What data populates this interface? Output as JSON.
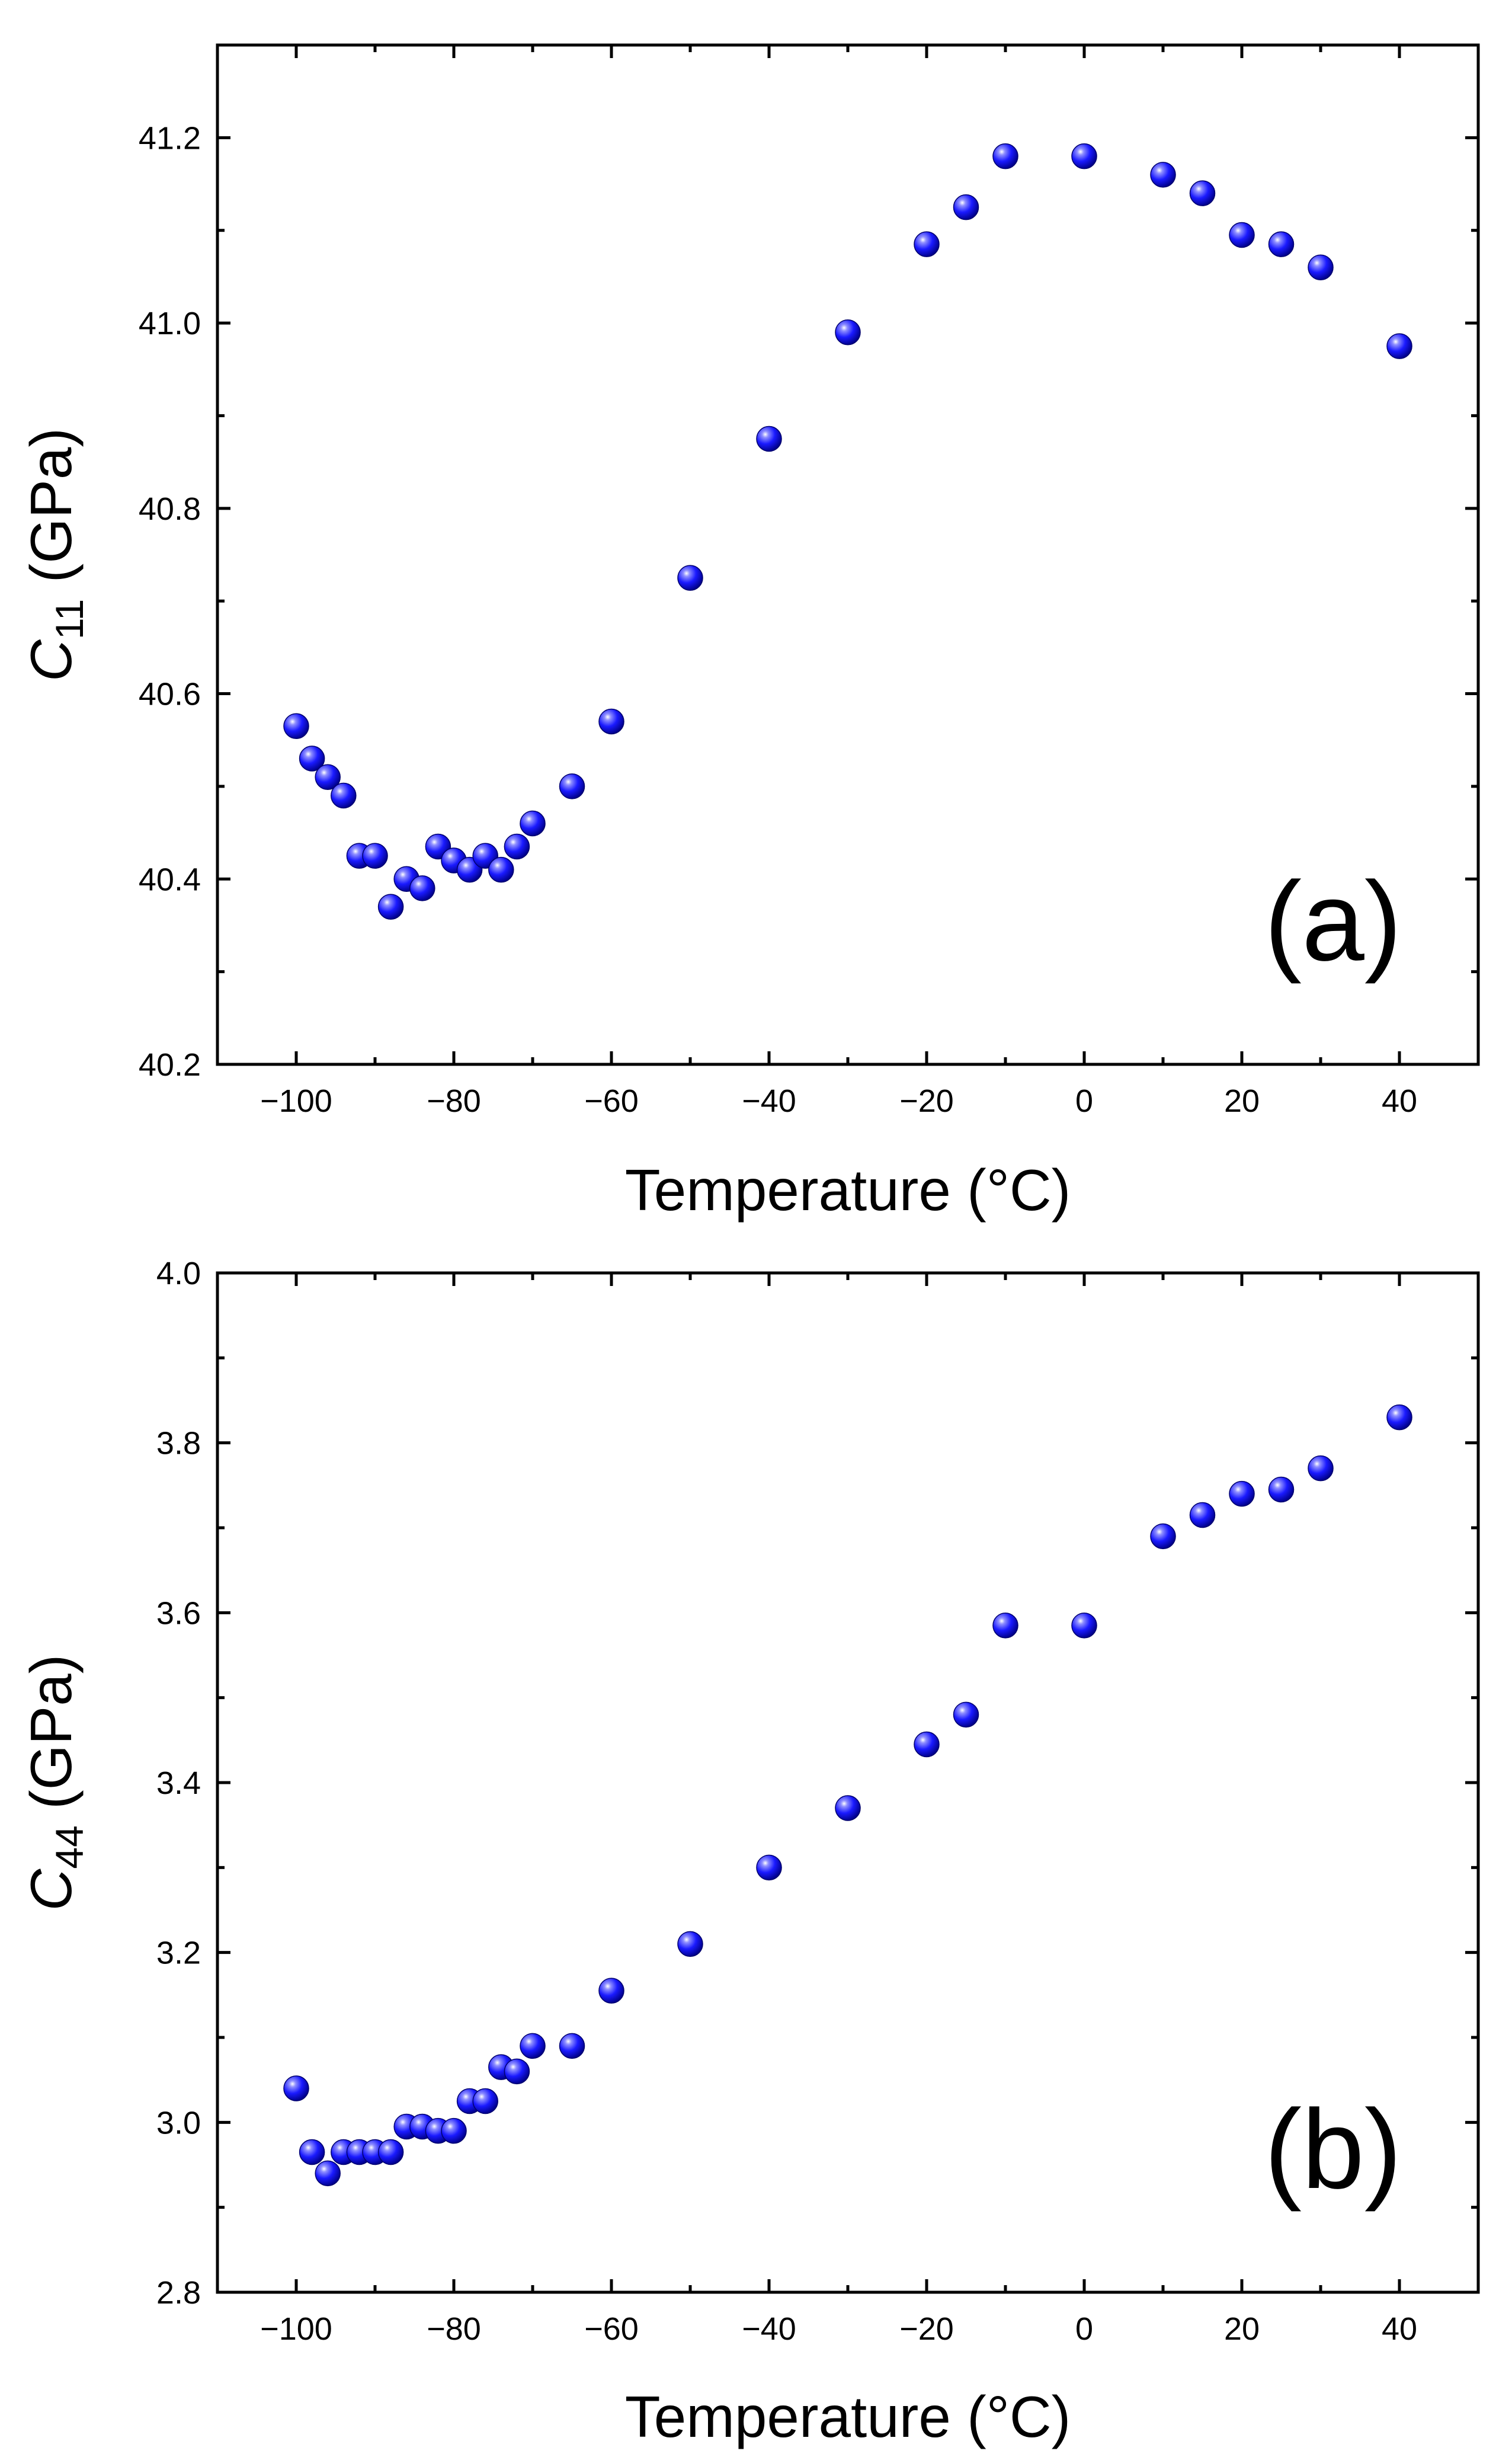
{
  "chart_data": [
    {
      "type": "scatter",
      "panel_label": "(a)",
      "ylabel_main": "C",
      "ylabel_sub": "11",
      "ylabel_unit": " (GPa)",
      "xlabel": "Temperature (°C)",
      "xlim": [
        -110,
        50
      ],
      "ylim": [
        40.2,
        41.3
      ],
      "xticks": [
        -100,
        -80,
        -60,
        -40,
        -20,
        0,
        20,
        40
      ],
      "xtick_labels": [
        "−100",
        "−80",
        "−60",
        "−40",
        "−20",
        "0",
        "20",
        "40"
      ],
      "yticks": [
        40.2,
        40.4,
        40.6,
        40.8,
        41.0,
        41.2
      ],
      "ytick_labels": [
        "40.2",
        "40.4",
        "40.6",
        "40.8",
        "41.0",
        "41.2"
      ],
      "marker_color": "#1a1aff",
      "series": [
        {
          "name": "C11",
          "x": [
            -100,
            -98,
            -96,
            -94,
            -92,
            -90,
            -88,
            -86,
            -84,
            -82,
            -80,
            -78,
            -76,
            -74,
            -72,
            -70,
            -65,
            -60,
            -50,
            -40,
            -30,
            -20,
            -15,
            -10,
            0,
            10,
            15,
            20,
            25,
            30,
            40
          ],
          "y": [
            40.565,
            40.53,
            40.51,
            40.49,
            40.425,
            40.425,
            40.37,
            40.4,
            40.39,
            40.435,
            40.42,
            40.41,
            40.425,
            40.41,
            40.435,
            40.46,
            40.5,
            40.57,
            40.725,
            40.875,
            40.99,
            41.085,
            41.125,
            41.18,
            41.18,
            41.16,
            41.14,
            41.095,
            41.085,
            41.06,
            40.975
          ]
        }
      ]
    },
    {
      "type": "scatter",
      "panel_label": "(b)",
      "ylabel_main": "C",
      "ylabel_sub": "44",
      "ylabel_unit": " (GPa)",
      "xlabel": "Temperature (°C)",
      "xlim": [
        -110,
        50
      ],
      "ylim": [
        2.8,
        4.0
      ],
      "xticks": [
        -100,
        -80,
        -60,
        -40,
        -20,
        0,
        20,
        40
      ],
      "xtick_labels": [
        "−100",
        "−80",
        "−60",
        "−40",
        "−20",
        "0",
        "20",
        "40"
      ],
      "yticks": [
        2.8,
        3.0,
        3.2,
        3.4,
        3.6,
        3.8,
        4.0
      ],
      "ytick_labels": [
        "2.8",
        "3.0",
        "3.2",
        "3.4",
        "3.6",
        "3.8",
        "4.0"
      ],
      "marker_color": "#1a1aff",
      "series": [
        {
          "name": "C44",
          "x": [
            -100,
            -98,
            -96,
            -94,
            -92,
            -90,
            -88,
            -86,
            -84,
            -82,
            -80,
            -78,
            -76,
            -74,
            -72,
            -70,
            -65,
            -60,
            -50,
            -40,
            -30,
            -20,
            -15,
            -10,
            0,
            10,
            15,
            20,
            25,
            30,
            40
          ],
          "y": [
            3.04,
            2.965,
            2.94,
            2.965,
            2.965,
            2.965,
            2.965,
            2.995,
            2.995,
            2.99,
            2.99,
            3.025,
            3.025,
            3.065,
            3.06,
            3.09,
            3.09,
            3.155,
            3.21,
            3.3,
            3.37,
            3.445,
            3.48,
            3.585,
            3.585,
            3.69,
            3.715,
            3.74,
            3.745,
            3.77,
            3.83
          ]
        }
      ]
    }
  ]
}
